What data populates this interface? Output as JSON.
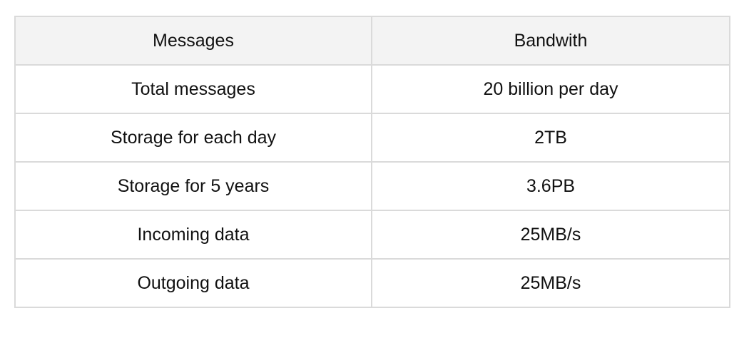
{
  "table": {
    "headers": [
      "Messages",
      "Bandwith"
    ],
    "rows": [
      [
        "Total messages",
        "20 billion per day"
      ],
      [
        "Storage for each day",
        "2TB"
      ],
      [
        "Storage for 5 years",
        "3.6PB"
      ],
      [
        "Incoming data",
        "25MB/s"
      ],
      [
        "Outgoing data",
        "25MB/s"
      ]
    ]
  },
  "colors": {
    "border": "#dadada",
    "header_background": "#f3f3f3",
    "text": "#111111"
  }
}
